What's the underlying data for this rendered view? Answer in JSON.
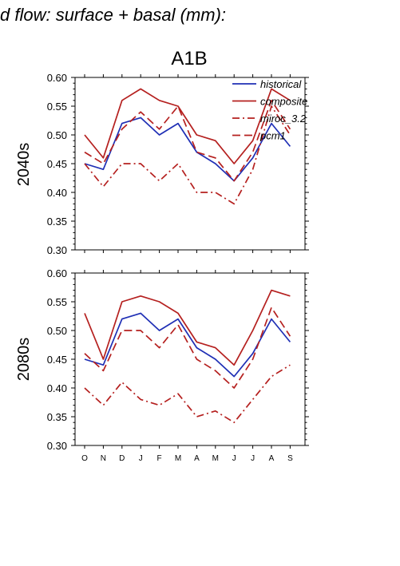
{
  "figure_title": "d flow: surface + basal (mm):",
  "scenario": "A1B",
  "colors": {
    "historical": "#1f2fb5",
    "projection": "#b5201f",
    "axis": "#000000"
  },
  "chart_data": [
    {
      "type": "line",
      "panel_label": "2040s",
      "categories": [
        "O",
        "N",
        "D",
        "J",
        "F",
        "M",
        "A",
        "M",
        "J",
        "J",
        "A",
        "S"
      ],
      "ylim": [
        0.3,
        0.6
      ],
      "yticks": [
        "0.60",
        "0.55",
        "0.50",
        "0.45",
        "0.40",
        "0.35",
        "0.30"
      ],
      "legend_position": "top-right",
      "series": [
        {
          "name": "historical",
          "style": "solid",
          "color": "#1f2fb5",
          "values": [
            0.45,
            0.44,
            0.52,
            0.53,
            0.5,
            0.52,
            0.47,
            0.45,
            0.42,
            0.46,
            0.52,
            0.48
          ]
        },
        {
          "name": "composite",
          "style": "solid",
          "color": "#b5201f",
          "values": [
            0.5,
            0.46,
            0.56,
            0.58,
            0.56,
            0.55,
            0.5,
            0.49,
            0.45,
            0.49,
            0.58,
            0.56
          ]
        },
        {
          "name": "miroc_3.2",
          "style": "dashdot",
          "color": "#b5201f",
          "values": [
            0.45,
            0.41,
            0.45,
            0.45,
            0.42,
            0.45,
            0.4,
            0.4,
            0.38,
            0.44,
            0.55,
            0.5
          ]
        },
        {
          "name": "pcm1",
          "style": "dashed",
          "color": "#b5201f",
          "values": [
            0.47,
            0.45,
            0.51,
            0.54,
            0.51,
            0.55,
            0.47,
            0.46,
            0.42,
            0.47,
            0.56,
            0.51
          ]
        }
      ]
    },
    {
      "type": "line",
      "panel_label": "2080s",
      "categories": [
        "O",
        "N",
        "D",
        "J",
        "F",
        "M",
        "A",
        "M",
        "J",
        "J",
        "A",
        "S"
      ],
      "ylim": [
        0.3,
        0.6
      ],
      "yticks": [
        "0.60",
        "0.55",
        "0.50",
        "0.45",
        "0.40",
        "0.35",
        "0.30"
      ],
      "series": [
        {
          "name": "historical",
          "style": "solid",
          "color": "#1f2fb5",
          "values": [
            0.45,
            0.44,
            0.52,
            0.53,
            0.5,
            0.52,
            0.47,
            0.45,
            0.42,
            0.46,
            0.52,
            0.48
          ]
        },
        {
          "name": "composite",
          "style": "solid",
          "color": "#b5201f",
          "values": [
            0.53,
            0.45,
            0.55,
            0.56,
            0.55,
            0.53,
            0.48,
            0.47,
            0.44,
            0.5,
            0.57,
            0.56
          ]
        },
        {
          "name": "miroc_3.2",
          "style": "dashdot",
          "color": "#b5201f",
          "values": [
            0.4,
            0.37,
            0.41,
            0.38,
            0.37,
            0.39,
            0.35,
            0.36,
            0.34,
            0.38,
            0.42,
            0.44
          ]
        },
        {
          "name": "pcm1",
          "style": "dashed",
          "color": "#b5201f",
          "values": [
            0.46,
            0.43,
            0.5,
            0.5,
            0.47,
            0.51,
            0.45,
            0.43,
            0.4,
            0.45,
            0.54,
            0.49
          ]
        }
      ]
    }
  ]
}
